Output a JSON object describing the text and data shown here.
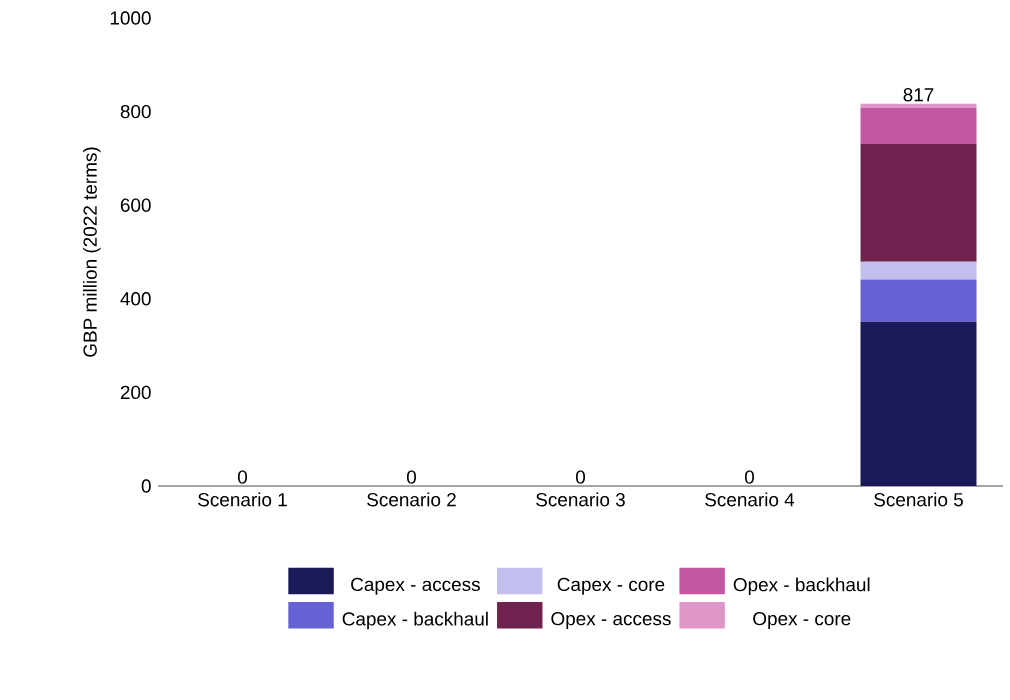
{
  "chart_data": {
    "type": "bar",
    "stacked": true,
    "ylabel": "GBP million (2022 terms)",
    "categories": [
      "Scenario 1",
      "Scenario 2",
      "Scenario 3",
      "Scenario 4",
      "Scenario 5"
    ],
    "series": [
      {
        "name": "Capex - access",
        "color": "#1b1958",
        "values": [
          0,
          0,
          0,
          0,
          351
        ]
      },
      {
        "name": "Capex - backhaul",
        "color": "#6762d3",
        "values": [
          0,
          0,
          0,
          0,
          90
        ]
      },
      {
        "name": "Capex - core",
        "color": "#c1bfee",
        "values": [
          0,
          0,
          0,
          0,
          38
        ]
      },
      {
        "name": "Opex - access",
        "color": "#70234f",
        "values": [
          0,
          0,
          0,
          0,
          252
        ]
      },
      {
        "name": "Opex - backhaul",
        "color": "#c256a2",
        "values": [
          0,
          0,
          0,
          0,
          77
        ]
      },
      {
        "name": "Opex - core",
        "color": "#de96c9",
        "values": [
          0,
          0,
          0,
          0,
          9
        ]
      }
    ],
    "totals": [
      "0",
      "0",
      "0",
      "0",
      "817"
    ],
    "ylim": [
      0,
      1000
    ],
    "yticks": [
      0,
      200,
      400,
      600,
      800,
      1000
    ],
    "grid": false,
    "legend": "bottom"
  }
}
